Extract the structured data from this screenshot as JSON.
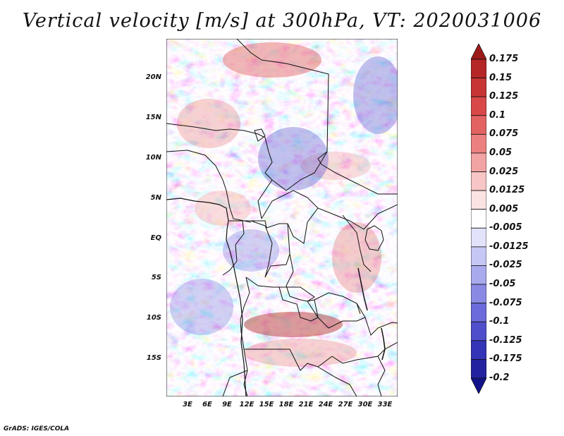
{
  "title": "Vertical velocity [m/s] at 300hPa, VT: 2020031006",
  "footer": "GrADS: IGES/COLA",
  "lat_labels": [
    "20N",
    "15N",
    "10N",
    "5N",
    "EQ",
    "5S",
    "10S",
    "15S"
  ],
  "lon_labels": [
    "3E",
    "6E",
    "9E",
    "12E",
    "15E",
    "18E",
    "21E",
    "24E",
    "27E",
    "30E",
    "33E"
  ],
  "colorbar": {
    "levels": [
      "0.175",
      "0.15",
      "0.125",
      "0.1",
      "0.075",
      "0.05",
      "0.025",
      "0.0125",
      "0.005",
      "-0.005",
      "-0.0125",
      "-0.025",
      "-0.05",
      "-0.075",
      "-0.1",
      "-0.125",
      "-0.175",
      "-0.2"
    ],
    "colors": [
      "#9e1b1b",
      "#b52626",
      "#c83535",
      "#d94848",
      "#e36363",
      "#ec8080",
      "#f2a3a3",
      "#f8c6c6",
      "#fbe3e3",
      "#ffffff",
      "#e2e2fb",
      "#c7c7f5",
      "#a9a9ee",
      "#8a8ae5",
      "#6b6bdb",
      "#4f4fcc",
      "#3434b8",
      "#2222a0",
      "#12128a"
    ]
  },
  "chart_data": {
    "type": "heatmap",
    "title": "Vertical velocity [m/s] at 300hPa, VT: 2020031006",
    "variable": "Vertical velocity",
    "units": "m/s",
    "level_hPa": 300,
    "valid_time": "2020031006",
    "lon_range": [
      0,
      35
    ],
    "lat_range": [
      -20,
      24
    ],
    "contour_levels": [
      -0.2,
      -0.175,
      -0.125,
      -0.1,
      -0.075,
      -0.05,
      -0.025,
      -0.0125,
      -0.005,
      0.005,
      0.0125,
      0.025,
      0.05,
      0.075,
      0.1,
      0.125,
      0.15,
      0.175
    ],
    "xlabel": "",
    "ylabel": ""
  }
}
